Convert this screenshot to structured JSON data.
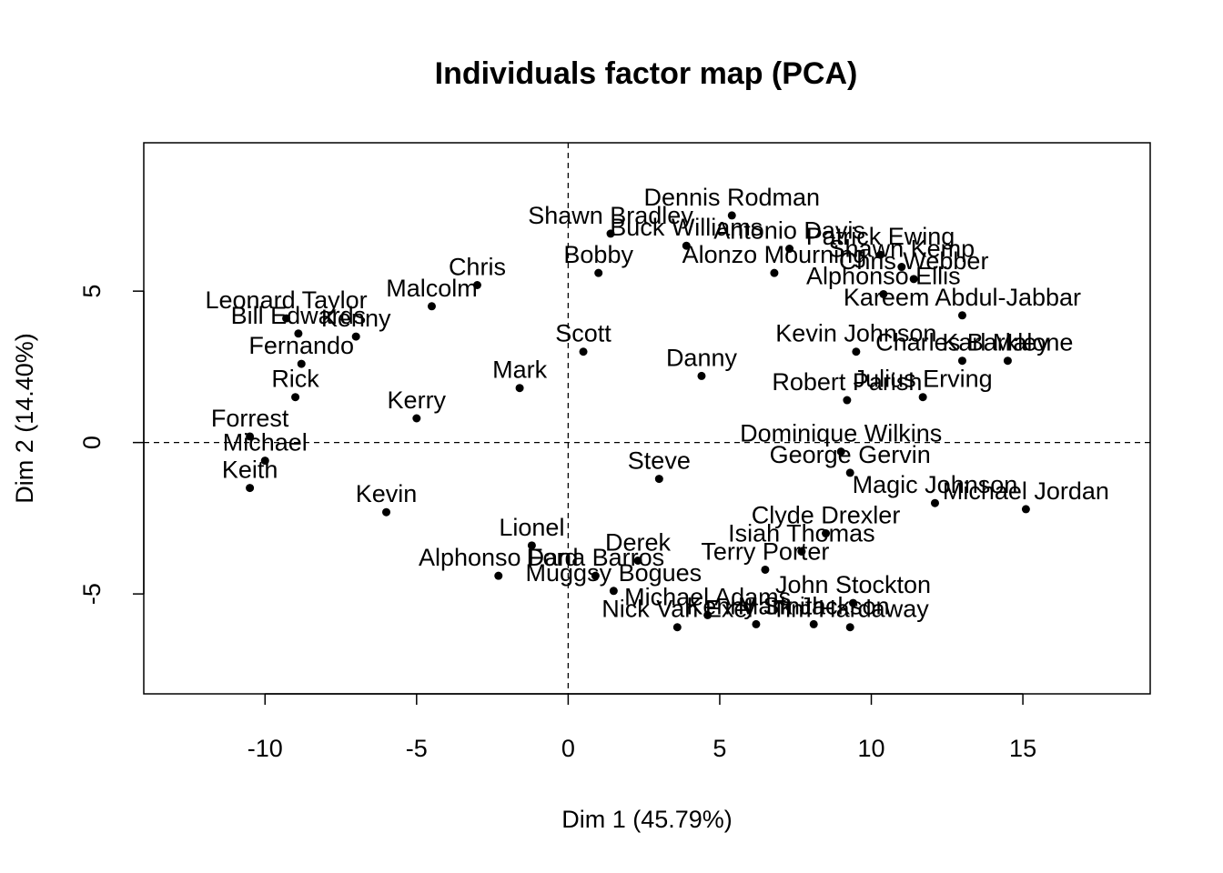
{
  "chart_data": {
    "type": "scatter",
    "title": "Individuals factor map (PCA)",
    "xlabel": "Dim 1 (45.79%)",
    "ylabel": "Dim 2 (14.40%)",
    "xlim": [
      -14,
      19.2
    ],
    "ylim": [
      -8.3,
      9.9
    ],
    "xticks": [
      -10,
      -5,
      0,
      5,
      10,
      15
    ],
    "yticks": [
      -5,
      0,
      5
    ],
    "xtick_labels": [
      "-10",
      "-5",
      "0",
      "5",
      "10",
      "15"
    ],
    "ytick_labels": [
      "-5",
      "0",
      "5"
    ],
    "grid": false,
    "reference_lines": {
      "x": 0,
      "y": 0,
      "style": "dashed"
    },
    "points": [
      {
        "x": 5.4,
        "y": 7.5,
        "label": "Dennis Rodman"
      },
      {
        "x": 11.0,
        "y": 5.8,
        "label": "Shawn Kemp"
      },
      {
        "x": 10.3,
        "y": 6.2,
        "label": "Patrick Ewing"
      },
      {
        "x": 11.4,
        "y": 5.4,
        "label": "Chris Webber"
      },
      {
        "x": 7.3,
        "y": 6.4,
        "label": "Antonio Davis"
      },
      {
        "x": 3.9,
        "y": 6.5,
        "label": "Buck Williams"
      },
      {
        "x": 6.8,
        "y": 5.6,
        "label": "Alonzo Mourning"
      },
      {
        "x": 1.4,
        "y": 6.9,
        "label": "Shawn Bradley"
      },
      {
        "x": 10.4,
        "y": 4.9,
        "label": "Alphonso Ellis"
      },
      {
        "x": 13.0,
        "y": 4.2,
        "label": "Kareem Abdul-Jabbar"
      },
      {
        "x": 14.5,
        "y": 2.7,
        "label": "Karl Malone"
      },
      {
        "x": 13.0,
        "y": 2.7,
        "label": "Charles Barkley"
      },
      {
        "x": 11.7,
        "y": 1.5,
        "label": "Julius Erving"
      },
      {
        "x": 9.5,
        "y": 3.0,
        "label": "Kevin Johnson"
      },
      {
        "x": 9.2,
        "y": 1.4,
        "label": "Robert Parish"
      },
      {
        "x": 9.0,
        "y": -0.3,
        "label": "Dominique Wilkins"
      },
      {
        "x": 9.3,
        "y": -1.0,
        "label": "George Gervin"
      },
      {
        "x": 12.1,
        "y": -2.0,
        "label": "Magic Johnson"
      },
      {
        "x": 15.1,
        "y": -2.2,
        "label": "Michael Jordan"
      },
      {
        "x": 8.5,
        "y": -3.0,
        "label": "Clyde Drexler"
      },
      {
        "x": 7.7,
        "y": -3.6,
        "label": "Isiah Thomas"
      },
      {
        "x": 6.5,
        "y": -4.2,
        "label": "Terry Porter"
      },
      {
        "x": 9.4,
        "y": -5.3,
        "label": "John Stockton"
      },
      {
        "x": 9.3,
        "y": -6.1,
        "label": "Tim Hardaway"
      },
      {
        "x": 8.1,
        "y": -6.0,
        "label": "Mark Jackson"
      },
      {
        "x": 6.2,
        "y": -6.0,
        "label": "Kenny Smith"
      },
      {
        "x": 4.6,
        "y": -5.7,
        "label": "Michael Adams"
      },
      {
        "x": 3.6,
        "y": -6.1,
        "label": "Nick Van Exel"
      },
      {
        "x": 1.5,
        "y": -4.9,
        "label": "Muggsy Bogues"
      },
      {
        "x": 0.9,
        "y": -4.4,
        "label": "Dana Barros"
      },
      {
        "x": -2.3,
        "y": -4.4,
        "label": "Alphonso Ford"
      },
      {
        "x": -9.3,
        "y": 4.1,
        "label": "Leonard Taylor"
      },
      {
        "x": -8.9,
        "y": 3.6,
        "label": "Bill Edwards"
      },
      {
        "x": -8.8,
        "y": 2.6,
        "label": "Fernando"
      },
      {
        "x": -9.0,
        "y": 1.5,
        "label": "Rick"
      },
      {
        "x": -10.5,
        "y": 0.2,
        "label": "Forrest"
      },
      {
        "x": -10.0,
        "y": -0.6,
        "label": "Michael"
      },
      {
        "x": -10.5,
        "y": -1.5,
        "label": "Keith"
      },
      {
        "x": -7.0,
        "y": 3.5,
        "label": "Kenny"
      },
      {
        "x": -6.0,
        "y": -2.3,
        "label": "Kevin"
      },
      {
        "x": -4.5,
        "y": 4.5,
        "label": "Malcolm"
      },
      {
        "x": -3.0,
        "y": 5.2,
        "label": "Chris"
      },
      {
        "x": 1.0,
        "y": 5.6,
        "label": "Bobby"
      },
      {
        "x": -1.2,
        "y": -3.4,
        "label": "Lionel"
      },
      {
        "x": 2.3,
        "y": -3.9,
        "label": "Derek"
      },
      {
        "x": 4.4,
        "y": 2.2,
        "label": "Danny"
      },
      {
        "x": -1.6,
        "y": 1.8,
        "label": "Mark"
      },
      {
        "x": -5.0,
        "y": 0.8,
        "label": "Kerry"
      },
      {
        "x": 3.0,
        "y": -1.2,
        "label": "Steve"
      },
      {
        "x": 0.5,
        "y": 3.0,
        "label": "Scott"
      }
    ]
  }
}
